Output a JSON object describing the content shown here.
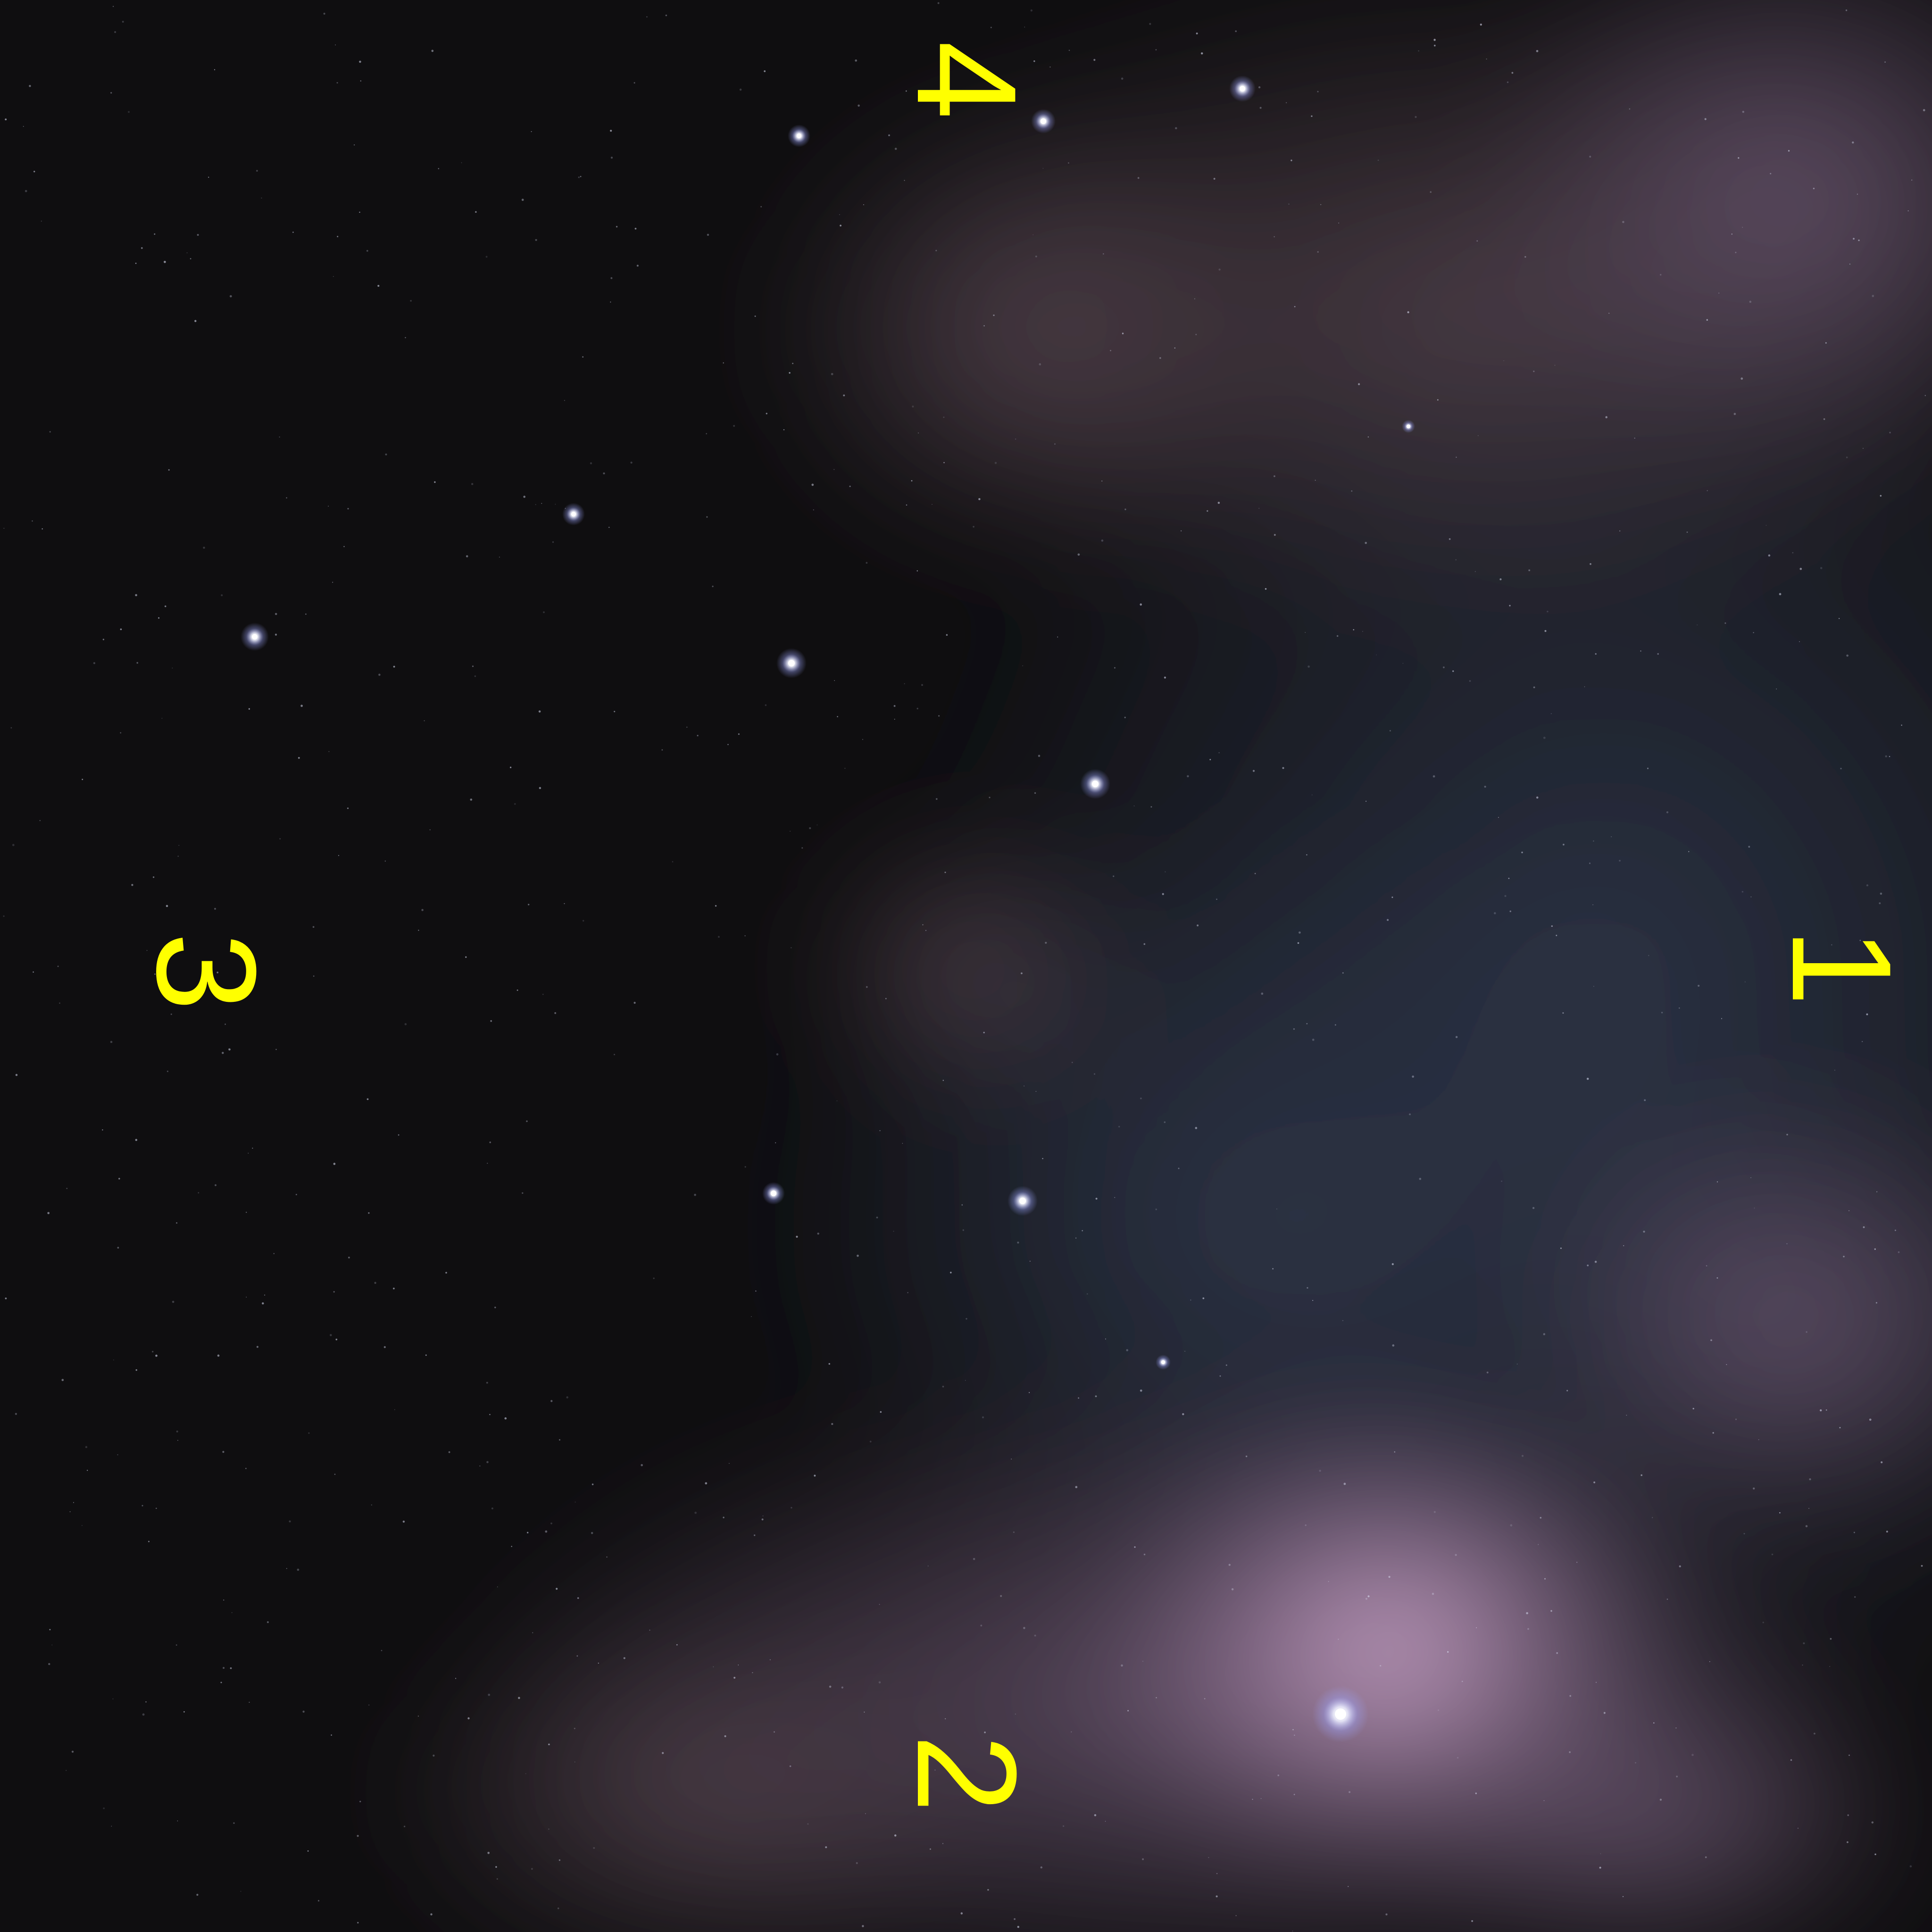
{
  "markers": {
    "right": "1",
    "bottom": "2",
    "left": "3",
    "top": "4"
  },
  "colors": {
    "marker": "#ffff00",
    "space": "#0f0e10",
    "nebula_violet": "#6a5670",
    "nebula_blue": "#2c3447",
    "nebula_pink": "#c9a3c6",
    "star": "#ffffff",
    "star_glow": "#9ea6ff"
  }
}
